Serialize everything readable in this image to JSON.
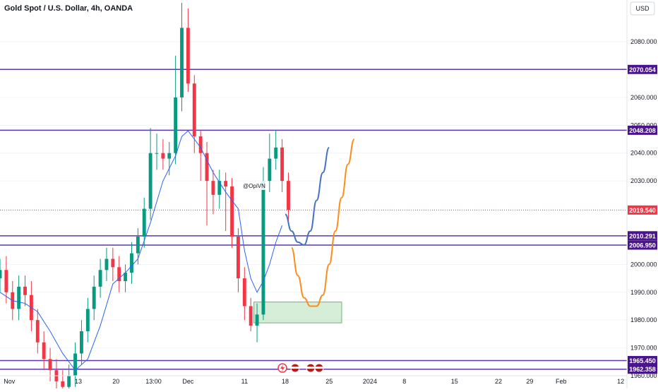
{
  "chart_data": {
    "type": "candlestick",
    "title": "Gold Spot / U.S. Dollar, 4h, OANDA",
    "currency_label": "USD",
    "watermark": "@OpiVN",
    "ylim": [
      1960,
      2095
    ],
    "y_ticks": [
      {
        "value": 1960,
        "label": "1960.000"
      },
      {
        "value": 1970,
        "label": "1970.000"
      },
      {
        "value": 1980,
        "label": "1980.000"
      },
      {
        "value": 1990,
        "label": "1990.000"
      },
      {
        "value": 2000,
        "label": "2000.000"
      },
      {
        "value": 2030,
        "label": "2030.000"
      },
      {
        "value": 2040,
        "label": "2040.000"
      },
      {
        "value": 2050,
        "label": "2050.000"
      },
      {
        "value": 2060,
        "label": "2060.000"
      },
      {
        "value": 2080,
        "label": "2080.000"
      }
    ],
    "x_domain": [
      0,
      100
    ],
    "x_ticks": [
      {
        "x": 1.5,
        "label": "Nov"
      },
      {
        "x": 12.5,
        "label": "13"
      },
      {
        "x": 18.5,
        "label": "20"
      },
      {
        "x": 24.5,
        "label": "13:00"
      },
      {
        "x": 30.0,
        "label": "Dec"
      },
      {
        "x": 39.0,
        "label": "11"
      },
      {
        "x": 45.5,
        "label": "18"
      },
      {
        "x": 52.5,
        "label": "25"
      },
      {
        "x": 59.0,
        "label": "2024"
      },
      {
        "x": 64.5,
        "label": "8"
      },
      {
        "x": 72.5,
        "label": "15"
      },
      {
        "x": 79.5,
        "label": "22"
      },
      {
        "x": 84.5,
        "label": "29"
      },
      {
        "x": 89.5,
        "label": "Feb"
      },
      {
        "x": 99.0,
        "label": "12"
      }
    ],
    "horizontal_levels": [
      {
        "value": 2070.054,
        "label": "2070.054",
        "color": "#4a148c"
      },
      {
        "value": 2048.208,
        "label": "2048.208",
        "color": "#4a148c"
      },
      {
        "value": 2010.291,
        "label": "2010.291",
        "color": "#4a148c"
      },
      {
        "value": 2006.95,
        "label": "2006.950",
        "color": "#4a148c"
      },
      {
        "value": 1965.45,
        "label": "1965.450",
        "color": "#4a148c"
      },
      {
        "value": 1962.358,
        "label": "1962.358",
        "color": "#4a148c"
      }
    ],
    "current_price": {
      "value": 2019.54,
      "label": "2019.540",
      "color": "#f23645"
    },
    "up_color": "#089981",
    "down_color": "#f23645",
    "ma_color": "#2962ff",
    "series": [
      {
        "x": [
          0,
          1,
          2,
          3,
          4,
          5,
          6,
          7,
          8,
          9,
          10,
          11,
          12,
          13,
          14,
          15,
          16,
          17,
          18,
          19,
          20,
          21,
          22,
          23,
          24,
          25,
          26,
          27,
          28,
          29,
          30,
          31,
          32,
          33,
          34,
          35,
          36,
          37,
          38,
          39,
          40,
          41,
          42,
          43,
          44,
          45,
          46
        ],
        "open": [
          1995,
          1998,
          1990,
          1984,
          1992,
          1989,
          1980,
          1972,
          1966,
          1962,
          1958,
          1956,
          1960,
          1968,
          1976,
          1984,
          1992,
          1998,
          2002,
          1999,
          1994,
          1997,
          2004,
          2010,
          2020,
          2040,
          2040,
          2038,
          2040,
          2060,
          2085,
          2065,
          2046,
          2040,
          2030,
          2025,
          2030,
          2028,
          2010,
          1995,
          1985,
          1978,
          1982,
          2030,
          2038,
          2042,
          2030
        ],
        "close": [
          1998,
          1990,
          1984,
          1992,
          1989,
          1980,
          1972,
          1966,
          1962,
          1958,
          1956,
          1960,
          1968,
          1976,
          1984,
          1992,
          1998,
          2002,
          1999,
          1994,
          1997,
          2004,
          2010,
          2020,
          2040,
          2040,
          2038,
          2040,
          2060,
          2085,
          2065,
          2046,
          2040,
          2030,
          2025,
          2030,
          2028,
          2010,
          1995,
          1985,
          1978,
          1982,
          2030,
          2038,
          2042,
          2030,
          2019.54
        ],
        "high": [
          2002,
          2003,
          1994,
          1996,
          1996,
          1994,
          1984,
          1976,
          1970,
          1966,
          1962,
          1964,
          1972,
          1980,
          1988,
          1996,
          2002,
          2006,
          2006,
          2003,
          2000,
          2008,
          2013,
          2024,
          2049,
          2047,
          2045,
          2044,
          2075,
          2094,
          2092,
          2068,
          2048,
          2044,
          2034,
          2034,
          2033,
          2031,
          2013,
          1999,
          1988,
          1986,
          2035,
          2047,
          2048,
          2045,
          2033
        ],
        "low": [
          1990,
          1986,
          1980,
          1980,
          1985,
          1976,
          1968,
          1962,
          1958,
          1954,
          1952,
          1954,
          1956,
          1964,
          1972,
          1980,
          1988,
          1994,
          1994,
          1990,
          1990,
          1993,
          2000,
          2006,
          2016,
          2034,
          2034,
          2032,
          2036,
          2055,
          2062,
          2040,
          2030,
          2014,
          2018,
          2020,
          2012,
          2006,
          1990,
          1980,
          1976,
          1972,
          1980,
          2026,
          2034,
          2026,
          2015
        ]
      }
    ],
    "moving_average": {
      "x": [
        0,
        2,
        4,
        6,
        8,
        10,
        12,
        14,
        16,
        18,
        20,
        22,
        24,
        26,
        28,
        29,
        30,
        32,
        34,
        36,
        38,
        39,
        40,
        41,
        42,
        43,
        44,
        45
      ],
      "values": [
        1990,
        1987,
        1986,
        1983,
        1976,
        1968,
        1962,
        1966,
        1978,
        1993,
        1997,
        2002,
        2015,
        2030,
        2039,
        2046,
        2048,
        2042,
        2033,
        2026,
        2020,
        2005,
        1995,
        1990,
        1994,
        2000,
        2008,
        2014
      ]
    },
    "projection_blue": {
      "x": [
        45.5,
        46.5,
        47.5,
        48.5,
        49.5,
        50.5,
        51.5,
        52.5
      ],
      "values": [
        2018,
        2012,
        2008,
        2007,
        2012,
        2023,
        2033,
        2042
      ],
      "color": "#4472c4"
    },
    "projection_orange": {
      "x": [
        46.5,
        47.5,
        48.5,
        49.5,
        50.5,
        51.5,
        52.5,
        53.5,
        54.5,
        55.5,
        56.5
      ],
      "values": [
        2006,
        1996,
        1988,
        1985,
        1985,
        1989,
        2000,
        2012,
        2024,
        2036,
        2045
      ],
      "color": "#ff8c1a"
    },
    "demand_zone": {
      "x0": 40.5,
      "x1": 54.5,
      "y0": 1979,
      "y1": 1986.5,
      "color": "#a5d6a7"
    }
  }
}
